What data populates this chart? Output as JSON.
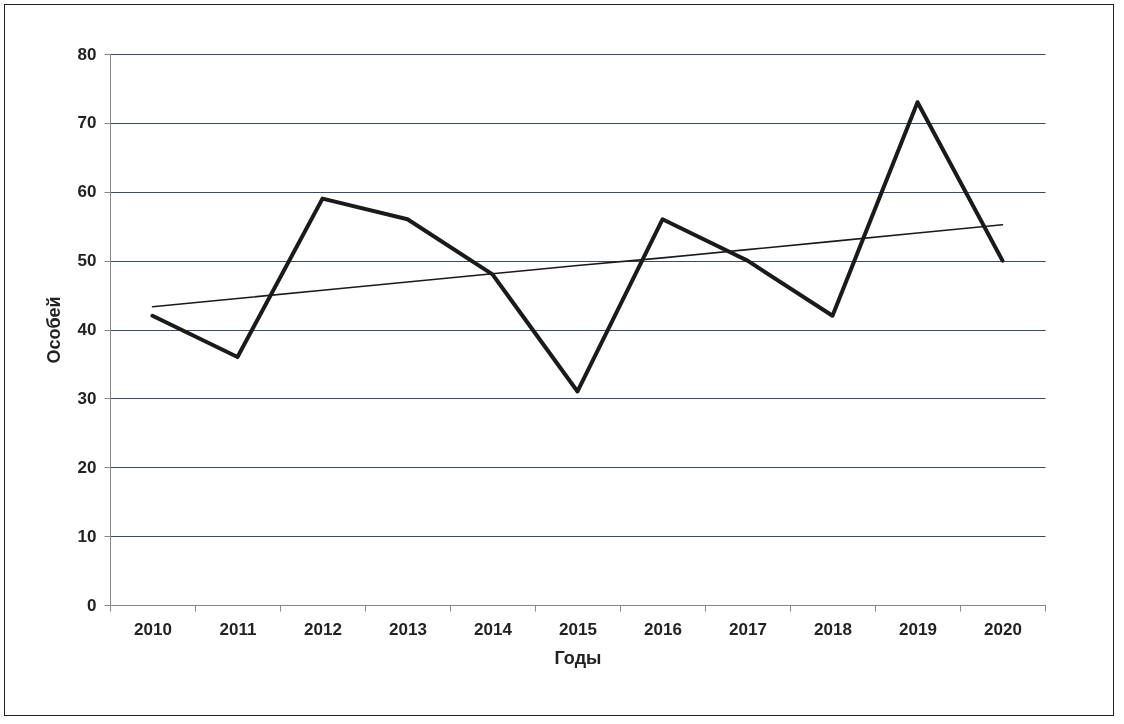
{
  "chart_data": {
    "type": "line",
    "xlabel": "Годы",
    "ylabel": "Особей",
    "categories": [
      "2010",
      "2011",
      "2012",
      "2013",
      "2014",
      "2015",
      "2016",
      "2017",
      "2018",
      "2019",
      "2020"
    ],
    "series": [
      {
        "color": "#1a1a1a",
        "values": [
          42,
          36,
          59,
          56,
          48,
          31,
          56,
          50,
          42,
          73,
          50
        ]
      },
      {
        "type": "line",
        "color": "#1a1a1a",
        "values": [
          43.3,
          44.5,
          45.7,
          46.9,
          48.1,
          49.3,
          50.4,
          51.6,
          52.8,
          54.0,
          55.2
        ]
      }
    ],
    "ylim": [
      0,
      80
    ],
    "yticks": [
      0,
      10,
      20,
      30,
      40,
      50,
      60,
      70,
      80
    ],
    "grid": "y",
    "marker": "none",
    "line_style": "solid"
  }
}
